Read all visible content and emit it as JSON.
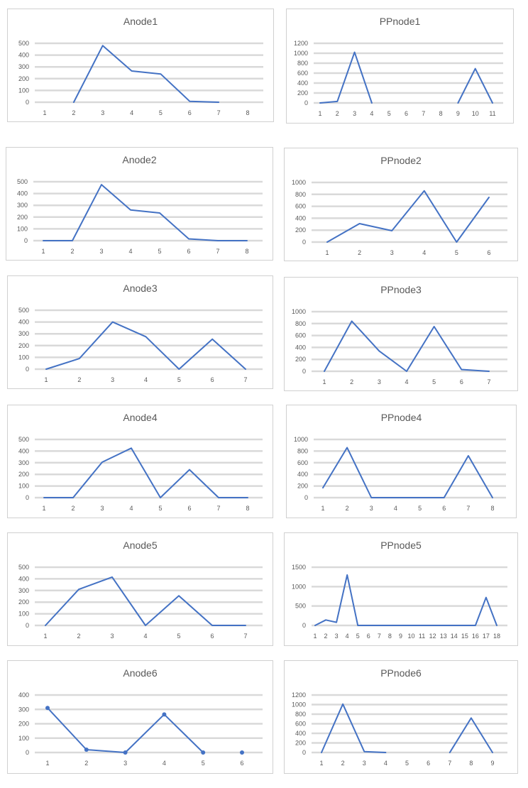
{
  "colors": {
    "series": "#4472C4",
    "grid": "#D9D9D9",
    "text": "#595959",
    "border": "#D0D0D0"
  },
  "chart_data": [
    {
      "id": "Anode1",
      "type": "line",
      "title": "Anode1",
      "categories": [
        "1",
        "2",
        "3",
        "4",
        "5",
        "6",
        "7",
        "8"
      ],
      "values": [
        null,
        0,
        480,
        265,
        240,
        8,
        0,
        null
      ],
      "yticks": [
        0,
        100,
        200,
        300,
        400,
        500
      ],
      "ylim": [
        0,
        500
      ],
      "grid": true,
      "markers": false
    },
    {
      "id": "PPnode1",
      "type": "line",
      "title": "PPnode1",
      "categories": [
        "1",
        "2",
        "3",
        "4",
        "5",
        "6",
        "7",
        "8",
        "9",
        "10",
        "11"
      ],
      "values": [
        0,
        30,
        1020,
        0,
        null,
        null,
        null,
        null,
        0,
        690,
        0
      ],
      "yticks": [
        0,
        200,
        400,
        600,
        800,
        1000,
        1200
      ],
      "ylim": [
        0,
        1200
      ],
      "grid": true,
      "markers": false
    },
    {
      "id": "Anode2",
      "type": "line",
      "title": "Anode2",
      "categories": [
        "1",
        "2",
        "3",
        "4",
        "5",
        "6",
        "7",
        "8"
      ],
      "values": [
        0,
        0,
        475,
        260,
        235,
        15,
        0,
        0
      ],
      "yticks": [
        0,
        100,
        200,
        300,
        400,
        500
      ],
      "ylim": [
        0,
        500
      ],
      "grid": true,
      "markers": false
    },
    {
      "id": "PPnode2",
      "type": "line",
      "title": "PPnode2",
      "categories": [
        "1",
        "2",
        "3",
        "4",
        "5",
        "6"
      ],
      "values": [
        0,
        310,
        190,
        860,
        0,
        750
      ],
      "yticks": [
        0,
        200,
        400,
        600,
        800,
        1000
      ],
      "ylim": [
        0,
        1000
      ],
      "grid": true,
      "markers": false
    },
    {
      "id": "Anode3",
      "type": "line",
      "title": "Anode3",
      "categories": [
        "1",
        "2",
        "3",
        "4",
        "5",
        "6",
        "7"
      ],
      "values": [
        0,
        90,
        400,
        275,
        0,
        255,
        0
      ],
      "yticks": [
        0,
        100,
        200,
        300,
        400,
        500
      ],
      "ylim": [
        0,
        500
      ],
      "grid": true,
      "markers": false
    },
    {
      "id": "PPnode3",
      "type": "line",
      "title": "PPnode3",
      "categories": [
        "1",
        "2",
        "3",
        "4",
        "5",
        "6",
        "7"
      ],
      "values": [
        0,
        840,
        340,
        0,
        750,
        30,
        0
      ],
      "yticks": [
        0,
        200,
        400,
        600,
        800,
        1000
      ],
      "ylim": [
        0,
        1000
      ],
      "grid": true,
      "markers": false
    },
    {
      "id": "Anode4",
      "type": "line",
      "title": "Anode4",
      "categories": [
        "1",
        "2",
        "3",
        "4",
        "5",
        "6",
        "7",
        "8"
      ],
      "values": [
        0,
        0,
        305,
        425,
        0,
        240,
        0,
        0
      ],
      "yticks": [
        0,
        100,
        200,
        300,
        400,
        500
      ],
      "ylim": [
        0,
        500
      ],
      "grid": true,
      "markers": false
    },
    {
      "id": "PPnode4",
      "type": "line",
      "title": "PPnode4",
      "categories": [
        "1",
        "2",
        "3",
        "4",
        "5",
        "6",
        "7",
        "8"
      ],
      "values": [
        170,
        860,
        0,
        0,
        0,
        0,
        720,
        0
      ],
      "yticks": [
        0,
        200,
        400,
        600,
        800,
        1000
      ],
      "ylim": [
        0,
        1000
      ],
      "grid": true,
      "markers": false
    },
    {
      "id": "Anode5",
      "type": "line",
      "title": "Anode5",
      "categories": [
        "1",
        "2",
        "3",
        "4",
        "5",
        "6",
        "7"
      ],
      "values": [
        0,
        310,
        415,
        0,
        255,
        0,
        0
      ],
      "yticks": [
        0,
        100,
        200,
        300,
        400,
        500
      ],
      "ylim": [
        0,
        500
      ],
      "grid": true,
      "markers": false
    },
    {
      "id": "PPnode5",
      "type": "line",
      "title": "PPnode5",
      "categories": [
        "1",
        "2",
        "3",
        "4",
        "5",
        "6",
        "7",
        "8",
        "9",
        "10",
        "11",
        "12",
        "13",
        "14",
        "15",
        "16",
        "17",
        "18"
      ],
      "values": [
        0,
        140,
        80,
        1300,
        0,
        0,
        0,
        0,
        0,
        0,
        0,
        0,
        0,
        0,
        0,
        0,
        720,
        0
      ],
      "yticks": [
        0,
        500,
        1000,
        1500
      ],
      "ylim": [
        0,
        1500
      ],
      "grid": true,
      "markers": false
    },
    {
      "id": "Anode6",
      "type": "line",
      "title": "Anode6",
      "categories": [
        "1",
        "2",
        "3",
        "4",
        "5",
        "6"
      ],
      "values": [
        310,
        20,
        0,
        265,
        0,
        0
      ],
      "segments": [
        [
          0,
          1,
          2,
          3,
          4
        ]
      ],
      "yticks": [
        0,
        100,
        200,
        300,
        400
      ],
      "ylim": [
        0,
        400
      ],
      "grid": true,
      "markers": true
    },
    {
      "id": "PPnode6",
      "type": "line",
      "title": "PPnode6",
      "categories": [
        "1",
        "2",
        "3",
        "4",
        "5",
        "6",
        "7",
        "8",
        "9"
      ],
      "values": [
        0,
        1010,
        20,
        0,
        null,
        null,
        0,
        720,
        0
      ],
      "yticks": [
        0,
        200,
        400,
        600,
        800,
        1000,
        1200
      ],
      "ylim": [
        0,
        1200
      ],
      "grid": true,
      "markers": false
    }
  ]
}
